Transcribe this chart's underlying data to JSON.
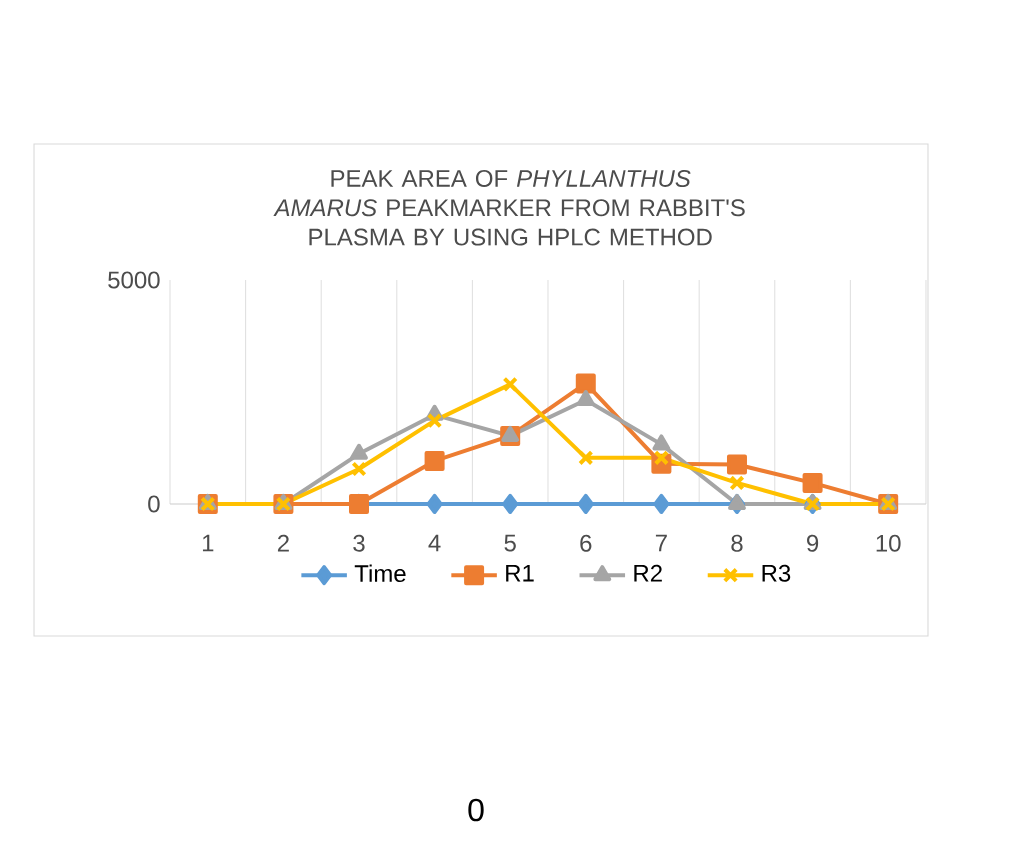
{
  "chart_data": {
    "type": "line",
    "title": "PEAK AREA OF *PHYLLANTHUS AMARUS* PEAKMARKER FROM RABBIT'S PLASMA BY USING HPLC METHOD",
    "categories": [
      "1",
      "2",
      "3",
      "4",
      "5",
      "6",
      "7",
      "8",
      "9",
      "10"
    ],
    "series": [
      {
        "name": "Time",
        "color": "#5b9bd5",
        "marker": "diamond",
        "values": [
          0,
          0,
          0,
          0,
          0,
          0,
          0,
          0,
          0,
          0
        ]
      },
      {
        "name": "R1",
        "color": "#ed7d31",
        "marker": "square",
        "values": [
          0,
          0,
          0,
          960,
          1520,
          2690,
          900,
          880,
          470,
          0
        ]
      },
      {
        "name": "R2",
        "color": "#a5a5a5",
        "marker": "triangle",
        "values": [
          0,
          0,
          1120,
          1990,
          1520,
          2320,
          1330,
          0,
          0,
          0
        ]
      },
      {
        "name": "R3",
        "color": "#ffc000",
        "marker": "cross",
        "values": [
          0,
          0,
          780,
          1860,
          2670,
          1030,
          1030,
          470,
          0,
          0
        ]
      }
    ],
    "ylim": [
      0,
      5000
    ],
    "yticks": [
      0,
      5000
    ],
    "grid": "x",
    "legend": "bottom",
    "annotations": [
      "0"
    ]
  }
}
